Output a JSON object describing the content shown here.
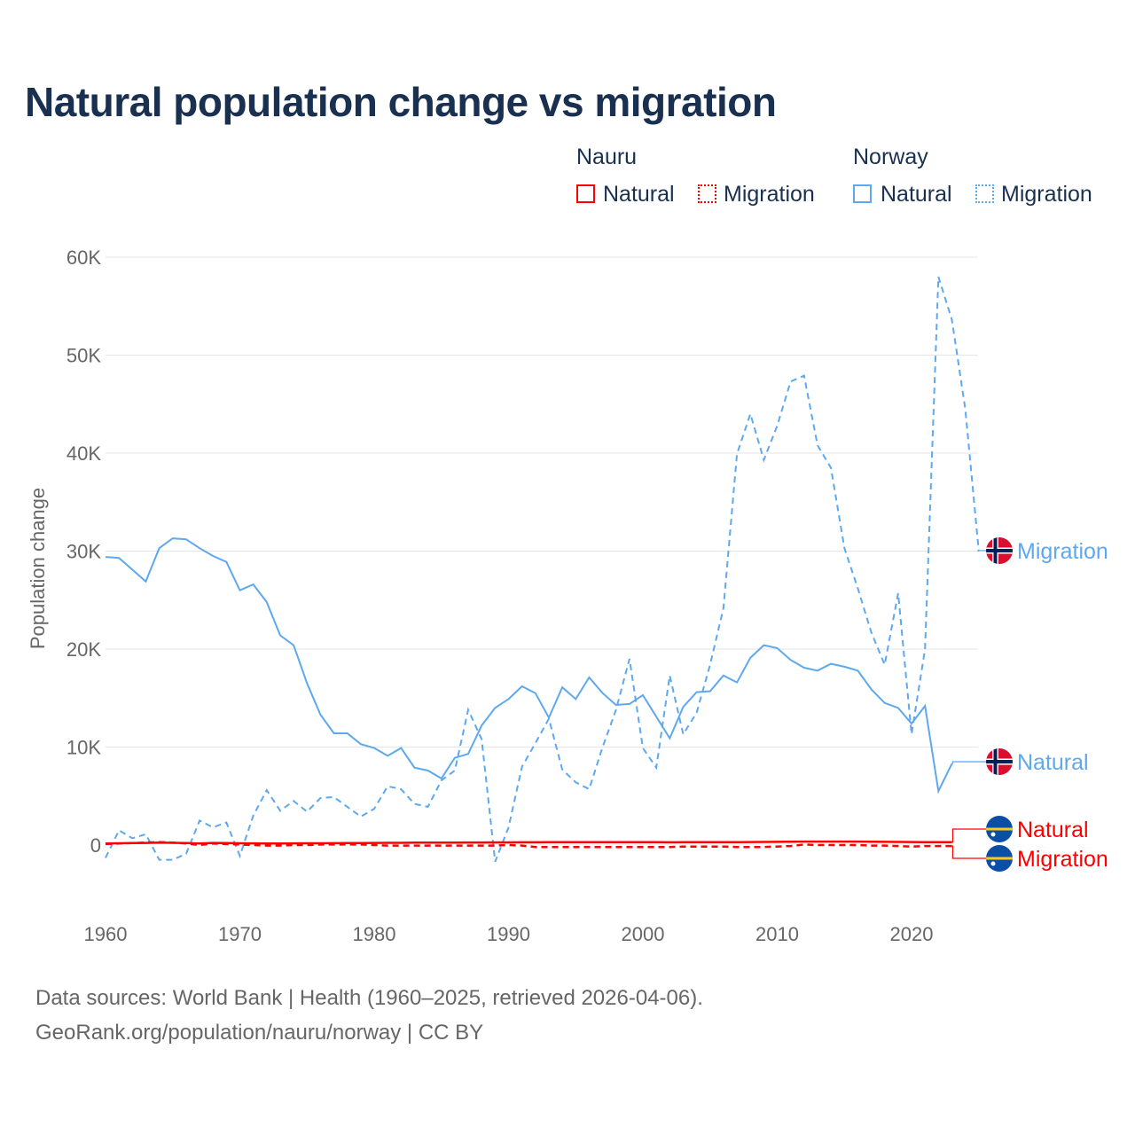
{
  "title": "Natural population change vs migration",
  "legend": {
    "groups": [
      {
        "name": "Nauru",
        "items": [
          "Natural",
          "Migration"
        ]
      },
      {
        "name": "Norway",
        "items": [
          "Natural",
          "Migration"
        ]
      }
    ]
  },
  "footer": {
    "line1": "Data sources: World Bank | Health (1960–2025, retrieved 2026-04-06).",
    "line2": "GeoRank.org/population/nauru/norway | CC BY"
  },
  "colors": {
    "nauru": "#ff0000",
    "norway": "#5ea8ee",
    "grid": "#e6e6e6",
    "text": "#1a3050"
  },
  "chart_data": {
    "type": "line",
    "title": "Natural population change vs migration",
    "xlabel": "",
    "ylabel": "Population change",
    "xlim": [
      1960,
      2025
    ],
    "ylim": [
      -7000,
      60000
    ],
    "xticks": [
      1960,
      1970,
      1980,
      1990,
      2000,
      2010,
      2020
    ],
    "yticks": [
      0,
      10000,
      20000,
      30000,
      40000,
      50000,
      60000
    ],
    "ytick_labels": [
      "0",
      "10K",
      "20K",
      "30K",
      "40K",
      "50K",
      "60K"
    ],
    "grid": true,
    "legend_position": "top-right",
    "series": [
      {
        "name": "Norway Natural",
        "country": "Norway",
        "label": "Natural",
        "color": "#5ea8ee",
        "dash": "solid",
        "x_start": 1960,
        "values": [
          29400,
          29300,
          28100,
          26900,
          30300,
          31300,
          31200,
          30300,
          29500,
          28900,
          26000,
          26600,
          24800,
          21400,
          20400,
          16500,
          13300,
          11400,
          11400,
          10300,
          9900,
          9100,
          9900,
          7900,
          7600,
          6800,
          8900,
          9300,
          12200,
          14000,
          14900,
          16200,
          15500,
          13000,
          16100,
          14900,
          17100,
          15500,
          14300,
          14400,
          15300,
          13100,
          10900,
          14100,
          15600,
          15700,
          17300,
          16600,
          19100,
          20400,
          20100,
          18900,
          18100,
          17800,
          18500,
          18200,
          17800,
          15900,
          14500,
          14000,
          12400,
          14200,
          5500,
          8300
        ]
      },
      {
        "name": "Norway Migration",
        "country": "Norway",
        "label": "Migration",
        "color": "#5ea8ee",
        "dash": "dashed",
        "x_start": 1960,
        "values": [
          -1300,
          1500,
          700,
          1100,
          -1500,
          -1500,
          -900,
          2500,
          1800,
          2300,
          -1100,
          3000,
          5600,
          3500,
          4500,
          3400,
          4800,
          4900,
          3900,
          2900,
          3700,
          6000,
          5700,
          4200,
          3900,
          6600,
          7600,
          13800,
          10800,
          -1700,
          1800,
          8000,
          10400,
          12900,
          7700,
          6400,
          5700,
          10000,
          13800,
          19000,
          9900,
          7900,
          17300,
          11300,
          13500,
          18400,
          24200,
          39900,
          44000,
          39300,
          42800,
          47300,
          47900,
          40800,
          38500,
          30300,
          26200,
          21700,
          18400,
          25700,
          11300,
          20000,
          58000,
          53600,
          44500,
          30000
        ]
      },
      {
        "name": "Nauru Natural",
        "country": "Nauru",
        "label": "Natural",
        "color": "#ff0000",
        "dash": "solid",
        "x_start": 1960,
        "values": [
          150,
          180,
          200,
          220,
          240,
          230,
          200,
          150,
          220,
          200,
          180,
          170,
          160,
          160,
          170,
          180,
          180,
          190,
          200,
          210,
          220,
          230,
          230,
          240,
          240,
          250,
          250,
          260,
          260,
          270,
          270,
          280,
          280,
          290,
          290,
          290,
          290,
          290,
          290,
          290,
          290,
          290,
          280,
          290,
          300,
          300,
          300,
          300,
          310,
          320,
          330,
          340,
          350,
          350,
          350,
          350,
          350,
          340,
          330,
          320,
          310,
          300,
          290,
          290
        ]
      },
      {
        "name": "Nauru Migration",
        "country": "Nauru",
        "label": "Migration",
        "color": "#ff0000",
        "dash": "dashed",
        "x_start": 1960,
        "values": [
          100,
          150,
          200,
          250,
          300,
          250,
          150,
          0,
          150,
          100,
          50,
          0,
          -50,
          -50,
          0,
          0,
          50,
          50,
          50,
          50,
          0,
          -50,
          -50,
          -50,
          -50,
          -50,
          -50,
          -50,
          -50,
          -50,
          0,
          -50,
          -200,
          -200,
          -200,
          -200,
          -200,
          -200,
          -200,
          -200,
          -200,
          -200,
          -200,
          -150,
          -150,
          -150,
          -150,
          -200,
          -200,
          -200,
          -150,
          -100,
          50,
          0,
          0,
          0,
          0,
          -50,
          -50,
          -100,
          -150,
          -100,
          -100,
          -100
        ]
      }
    ]
  }
}
